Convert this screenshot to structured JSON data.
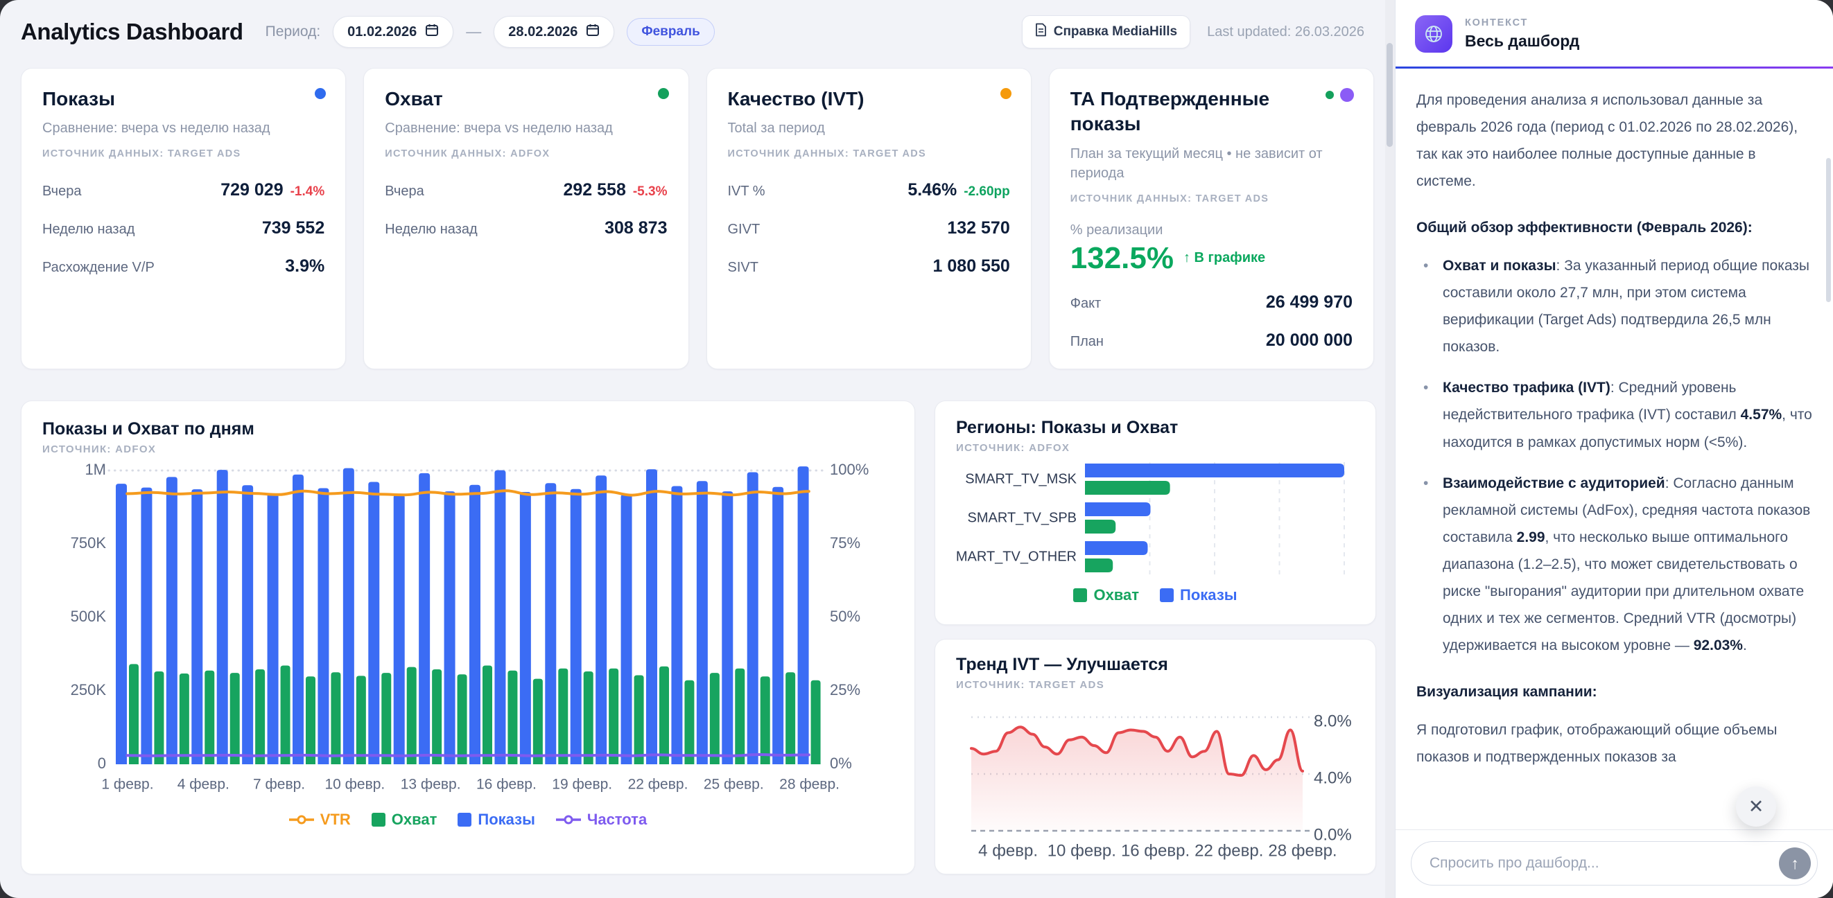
{
  "header": {
    "title": "Analytics Dashboard",
    "period_label": "Период:",
    "date_from": "01.02.2026",
    "date_to": "28.02.2026",
    "date_separator": "—",
    "month_badge": "Февраль",
    "help_button": "Справка MediaHills",
    "last_updated": "Last updated: 26.03.2026"
  },
  "colors": {
    "blue": "#3b6cf4",
    "green": "#17a45f",
    "orange": "#f59b1e",
    "purple": "#7e5bef",
    "red": "#e5484d",
    "delta_red": "#e8414b",
    "delta_green": "#0ea35f"
  },
  "kpi_cards": [
    {
      "title": "Показы",
      "subtitle": "Сравнение: вчера vs неделю назад",
      "source": "ИСТОЧНИК ДАННЫХ: TARGET ADS",
      "dots": [
        {
          "color": "#2f6bee",
          "size": 16
        }
      ],
      "rows": [
        {
          "label": "Вчера",
          "value": "729 029",
          "delta": "-1.4%",
          "delta_color": "#e8414b"
        },
        {
          "label": "Неделю назад",
          "value": "739 552"
        },
        {
          "label": "Расхождение V/P",
          "value": "3.9%"
        }
      ]
    },
    {
      "title": "Охват",
      "subtitle": "Сравнение: вчера vs неделю назад",
      "source": "ИСТОЧНИК ДАННЫХ: ADFOX",
      "dots": [
        {
          "color": "#14a05c",
          "size": 16
        }
      ],
      "rows": [
        {
          "label": "Вчера",
          "value": "292 558",
          "delta": "-5.3%",
          "delta_color": "#e8414b"
        },
        {
          "label": "Неделю назад",
          "value": "308 873"
        }
      ]
    },
    {
      "title": "Качество (IVT)",
      "subtitle": "Total за период",
      "source": "ИСТОЧНИК ДАННЫХ: TARGET ADS",
      "dots": [
        {
          "color": "#f59a0b",
          "size": 16
        }
      ],
      "rows": [
        {
          "label": "IVT %",
          "value": "5.46%",
          "delta": "-2.60pp",
          "delta_color": "#0ea35f"
        },
        {
          "label": "GIVT",
          "value": "132 570"
        },
        {
          "label": "SIVT",
          "value": "1 080 550"
        }
      ]
    },
    {
      "title": "ТА Подтвержденные показы",
      "subtitle": "План за текущий месяц • не зависит от периода",
      "source": "ИСТОЧНИК ДАННЫХ: TARGET ADS",
      "dots": [
        {
          "color": "#14a05c",
          "size": 12
        },
        {
          "color": "#8b5cf6",
          "size": 20
        }
      ],
      "realization_label": "% реализации",
      "realization_value": "132.5%",
      "realization_note": "↑ В графике",
      "rows": [
        {
          "label": "Факт",
          "value": "26 499 970"
        },
        {
          "label": "План",
          "value": "20 000 000"
        }
      ]
    }
  ],
  "main_chart": {
    "title": "Показы и Охват по дням",
    "source": "ИСТОЧНИК: ADFOX",
    "chart_data": {
      "type": "combo-bar-line",
      "days": [
        1,
        2,
        3,
        4,
        5,
        6,
        7,
        8,
        9,
        10,
        11,
        12,
        13,
        14,
        15,
        16,
        17,
        18,
        19,
        20,
        21,
        22,
        23,
        24,
        25,
        26,
        27,
        28
      ],
      "x_ticks": [
        "1 февр.",
        "4 февр.",
        "7 февр.",
        "10 февр.",
        "13 февр.",
        "16 февр.",
        "19 февр.",
        "22 февр.",
        "25 февр.",
        "28 февр."
      ],
      "y_left_ticks": [
        "1M",
        "750K",
        "500K",
        "250K",
        "0"
      ],
      "y_right_ticks": [
        "100%",
        "75%",
        "50%",
        "25%",
        "0%"
      ],
      "ylim_left": [
        0,
        1000000
      ],
      "ylim_right": [
        0,
        100
      ],
      "legend": [
        "VTR",
        "Охват",
        "Показы",
        "Частота"
      ],
      "series": [
        {
          "name": "Показы",
          "type": "bar",
          "axis": "left",
          "color": "#3b6cf4",
          "values": [
            955000,
            942000,
            978000,
            936000,
            1002000,
            950000,
            921000,
            986000,
            940000,
            1008000,
            961000,
            918000,
            991000,
            929000,
            951000,
            1001000,
            927000,
            957000,
            937000,
            983000,
            919000,
            1004000,
            947000,
            964000,
            929000,
            994000,
            944000,
            1014000
          ]
        },
        {
          "name": "Охват",
          "type": "bar",
          "axis": "left",
          "color": "#17a45f",
          "values": [
            341000,
            316000,
            309000,
            319000,
            311000,
            323000,
            336000,
            299000,
            313000,
            301000,
            311000,
            331000,
            323000,
            306000,
            336000,
            319000,
            291000,
            326000,
            316000,
            326000,
            303000,
            333000,
            286000,
            311000,
            326000,
            299000,
            313000,
            286000
          ]
        },
        {
          "name": "VTR",
          "type": "line",
          "axis": "right",
          "color": "#f59b1e",
          "values": [
            92.1,
            92.5,
            92.0,
            92.3,
            92.7,
            92.2,
            91.8,
            93.0,
            92.1,
            92.5,
            91.9,
            91.7,
            92.6,
            91.9,
            92.2,
            93.1,
            91.8,
            92.4,
            91.9,
            92.8,
            91.6,
            92.9,
            92.0,
            92.3,
            91.7,
            92.7,
            92.1,
            92.9
          ]
        },
        {
          "name": "Частота",
          "type": "line",
          "axis": "right",
          "color": "#7e5bef",
          "values": [
            3.0,
            2.9,
            3.0,
            3.0,
            3.1,
            2.9,
            3.0,
            3.1,
            2.9,
            3.0,
            3.0,
            2.9,
            3.1,
            2.9,
            3.0,
            3.1,
            2.9,
            3.0,
            3.0,
            3.1,
            2.9,
            3.2,
            3.0,
            3.0,
            2.9,
            3.3,
            3.1,
            3.2
          ]
        }
      ]
    }
  },
  "regions_chart": {
    "title": "Регионы: Показы и Охват",
    "source": "ИСТОЧНИК: ADFOX",
    "chart_data": {
      "type": "bar-horizontal",
      "categories": [
        "SMART_TV_MSK",
        "SMART_TV_SPB",
        "SMART_TV_OTHER"
      ],
      "series": [
        {
          "name": "Показы",
          "color": "#3b6cf4",
          "values_mln": [
            18.6,
            4.7,
            4.5
          ]
        },
        {
          "name": "Охват",
          "color": "#17a45f",
          "values_mln": [
            6.1,
            2.2,
            2.0
          ]
        }
      ],
      "xmax_mln": 18.6,
      "legend": [
        "Охват",
        "Показы"
      ]
    }
  },
  "ivt_chart": {
    "title": "Тренд IVT — Улучшается",
    "source": "ИСТОЧНИК: TARGET ADS",
    "chart_data": {
      "type": "area-line",
      "color": "#e5484d",
      "ylim": [
        0,
        8
      ],
      "y_ticks": [
        "8.0%",
        "4.0%",
        "0.0%"
      ],
      "x_ticks": [
        "4 февр.",
        "10 февр.",
        "16 февр.",
        "22 февр.",
        "28 февр."
      ],
      "values_pct": [
        5.8,
        5.4,
        5.6,
        6.9,
        7.3,
        6.8,
        5.9,
        5.4,
        6.4,
        6.6,
        6.0,
        5.5,
        6.9,
        7.1,
        7.0,
        6.6,
        5.6,
        6.6,
        5.2,
        5.6,
        7.0,
        4.0,
        3.9,
        5.3,
        4.3,
        5.0,
        7.1,
        4.2
      ]
    }
  },
  "sidebar": {
    "context_label": "КОНТЕКСТ",
    "context_title": "Весь дашборд",
    "close_glyph": "✕",
    "send_glyph": "↑",
    "input_placeholder": "Спросить про дашборд...",
    "blocks": [
      {
        "type": "p",
        "text": "Для проведения анализа я использовал данные за февраль 2026 года (период с 01.02.2026 по 28.02.2026), так как это наиболее полные доступные данные в системе."
      },
      {
        "type": "h",
        "text": "Общий обзор эффективности (Февраль 2026):"
      },
      {
        "type": "bullets",
        "items": [
          "**Охват и показы**: За указанный период общие показы составили около 27,7 млн, при этом система верификации (Target Ads) подтвердила 26,5 млн показов.",
          "**Качество трафика (IVT)**: Средний уровень недействительного трафика (IVT) составил **4.57%**, что находится в рамках допустимых норм (<5%).",
          "**Взаимодействие с аудиторией**: Согласно данным рекламной системы (AdFox), средняя частота показов составила **2.99**, что несколько выше оптимального диапазона (1.2–2.5), что может свидетельствовать о риске \"выгорания\" аудитории при длительном охвате одних и тех же сегментов. Средний VTR (досмотры) удерживается на высоком уровне — **92.03%**."
        ]
      },
      {
        "type": "h",
        "text": "Визуализация кампании:"
      },
      {
        "type": "p",
        "text": "Я подготовил график, отображающий общие объемы показов и подтвержденных показов за"
      }
    ]
  }
}
